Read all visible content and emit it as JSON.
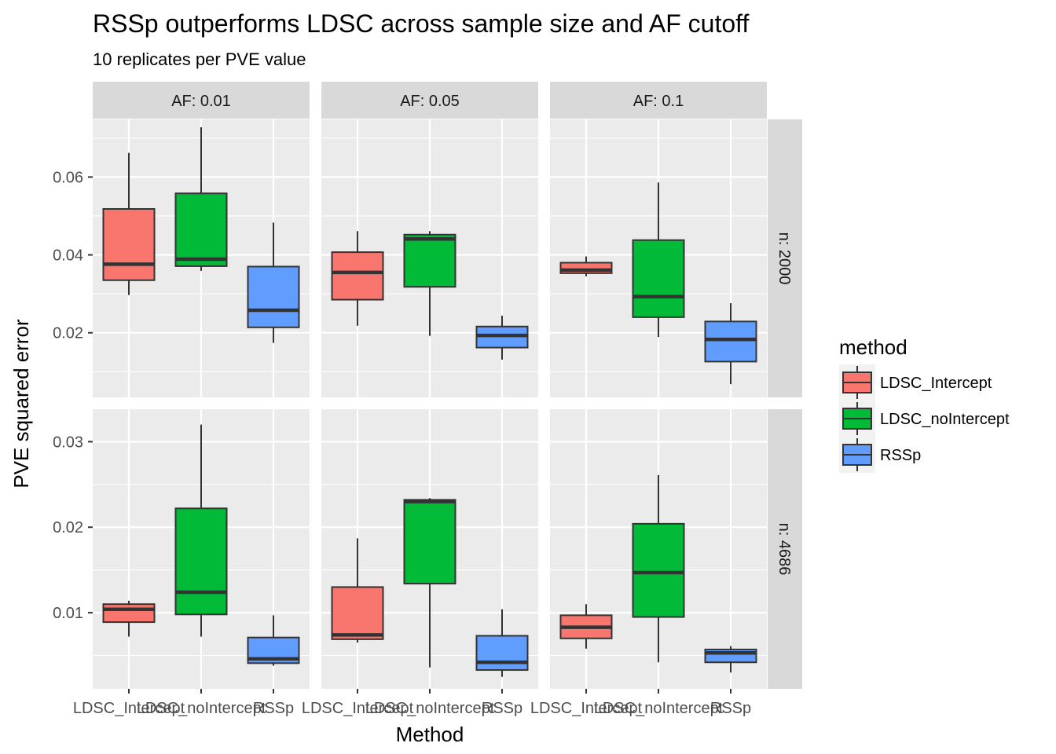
{
  "chart_data": {
    "type": "boxplot",
    "title": "RSSp outperforms LDSC across sample size and AF cutoff",
    "subtitle": "10 replicates per PVE value",
    "xlabel": "Method",
    "ylabel": "PVE squared error",
    "categories": [
      "LDSC_Intercept",
      "LDSC_noIntercept",
      "RSSp"
    ],
    "legend": {
      "title": "method",
      "position": "right",
      "entries": [
        {
          "label": "LDSC_Intercept",
          "color": "#F8766D"
        },
        {
          "label": "LDSC_noIntercept",
          "color": "#00BA38"
        },
        {
          "label": "RSSp",
          "color": "#619CFF"
        }
      ]
    },
    "facet_cols": [
      "AF: 0.01",
      "AF: 0.05",
      "AF: 0.1"
    ],
    "facet_rows": [
      {
        "label": "n: 2000",
        "ylim": [
          0.0034,
          0.0748
        ],
        "ticks": [
          0.02,
          0.04,
          0.06
        ],
        "tick_labels": [
          "0.02",
          "0.04",
          "0.06"
        ]
      },
      {
        "label": "n: 4686",
        "ylim": [
          0.0011,
          0.0338
        ],
        "ticks": [
          0.01,
          0.02,
          0.03
        ],
        "tick_labels": [
          "0.01",
          "0.02",
          "0.03"
        ]
      }
    ],
    "grid": true,
    "panels": [
      {
        "row": 0,
        "col": 0,
        "boxes": [
          {
            "method": "LDSC_Intercept",
            "min": 0.0297,
            "q1": 0.0335,
            "median": 0.0376,
            "q3": 0.0518,
            "max": 0.0662
          },
          {
            "method": "LDSC_noIntercept",
            "min": 0.0359,
            "q1": 0.0371,
            "median": 0.0389,
            "q3": 0.0558,
            "max": 0.0728
          },
          {
            "method": "RSSp",
            "min": 0.0174,
            "q1": 0.0214,
            "median": 0.0258,
            "q3": 0.037,
            "max": 0.0483
          }
        ]
      },
      {
        "row": 0,
        "col": 1,
        "boxes": [
          {
            "method": "LDSC_Intercept",
            "min": 0.0218,
            "q1": 0.0285,
            "median": 0.0355,
            "q3": 0.0407,
            "max": 0.0461
          },
          {
            "method": "LDSC_noIntercept",
            "min": 0.0192,
            "q1": 0.0318,
            "median": 0.0441,
            "q3": 0.0452,
            "max": 0.0461
          },
          {
            "method": "RSSp",
            "min": 0.0131,
            "q1": 0.0162,
            "median": 0.0193,
            "q3": 0.0216,
            "max": 0.0244
          }
        ]
      },
      {
        "row": 0,
        "col": 2,
        "boxes": [
          {
            "method": "LDSC_Intercept",
            "min": 0.0345,
            "q1": 0.0353,
            "median": 0.0361,
            "q3": 0.038,
            "max": 0.0396
          },
          {
            "method": "LDSC_noIntercept",
            "min": 0.0189,
            "q1": 0.024,
            "median": 0.0293,
            "q3": 0.0438,
            "max": 0.0586
          },
          {
            "method": "RSSp",
            "min": 0.0068,
            "q1": 0.0126,
            "median": 0.0183,
            "q3": 0.0229,
            "max": 0.0276
          }
        ]
      },
      {
        "row": 1,
        "col": 0,
        "boxes": [
          {
            "method": "LDSC_Intercept",
            "min": 0.0072,
            "q1": 0.0089,
            "median": 0.0104,
            "q3": 0.011,
            "max": 0.0114
          },
          {
            "method": "LDSC_noIntercept",
            "min": 0.0072,
            "q1": 0.0098,
            "median": 0.0124,
            "q3": 0.0222,
            "max": 0.032
          },
          {
            "method": "RSSp",
            "min": 0.0038,
            "q1": 0.0041,
            "median": 0.0046,
            "q3": 0.0071,
            "max": 0.0097
          }
        ]
      },
      {
        "row": 1,
        "col": 1,
        "boxes": [
          {
            "method": "LDSC_Intercept",
            "min": 0.0065,
            "q1": 0.0069,
            "median": 0.0074,
            "q3": 0.013,
            "max": 0.0187
          },
          {
            "method": "LDSC_noIntercept",
            "min": 0.0036,
            "q1": 0.0134,
            "median": 0.023,
            "q3": 0.0232,
            "max": 0.0234
          },
          {
            "method": "RSSp",
            "min": 0.0025,
            "q1": 0.0033,
            "median": 0.0042,
            "q3": 0.0073,
            "max": 0.0104
          }
        ]
      },
      {
        "row": 1,
        "col": 2,
        "boxes": [
          {
            "method": "LDSC_Intercept",
            "min": 0.0058,
            "q1": 0.007,
            "median": 0.0083,
            "q3": 0.0097,
            "max": 0.011
          },
          {
            "method": "LDSC_noIntercept",
            "min": 0.0042,
            "q1": 0.0095,
            "median": 0.0147,
            "q3": 0.0204,
            "max": 0.0261
          },
          {
            "method": "RSSp",
            "min": 0.003,
            "q1": 0.0042,
            "median": 0.0053,
            "q3": 0.0057,
            "max": 0.0061
          }
        ]
      }
    ]
  }
}
